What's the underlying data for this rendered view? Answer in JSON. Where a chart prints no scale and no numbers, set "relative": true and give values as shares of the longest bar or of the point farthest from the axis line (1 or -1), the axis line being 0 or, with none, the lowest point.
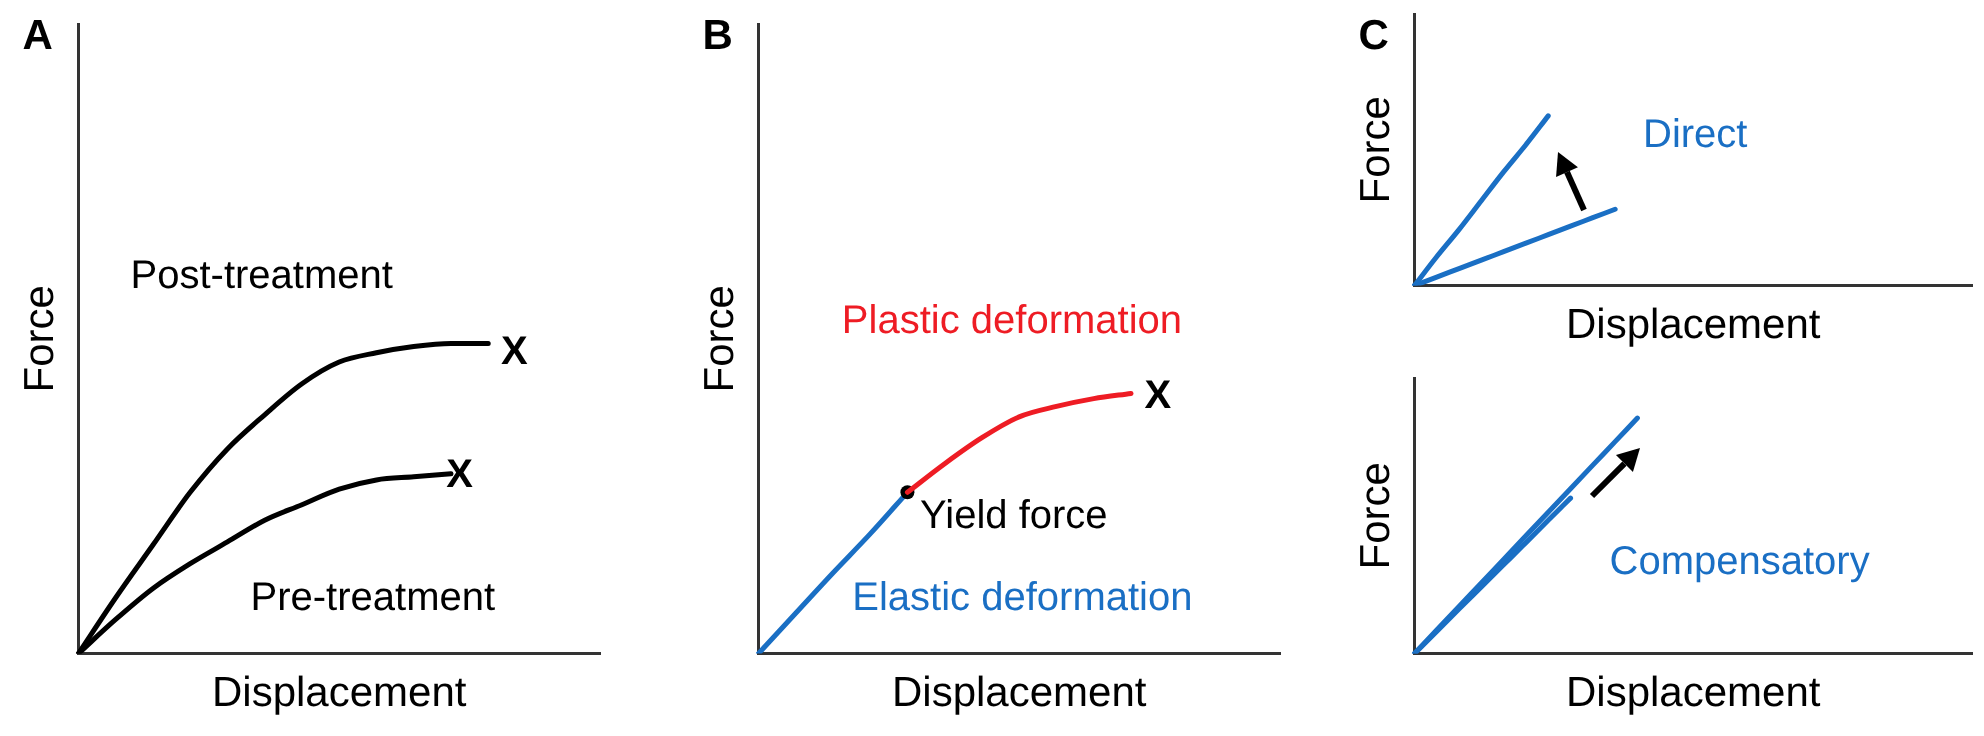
{
  "chart_data": [
    {
      "type": "line",
      "title": "A",
      "xlabel": "Displacement",
      "ylabel": "Force",
      "relative": true,
      "categories": [
        null,
        null,
        null,
        null,
        null,
        null,
        null,
        null,
        null,
        null,
        null,
        null,
        null,
        null,
        null
      ],
      "series": [
        {
          "name": "Post-treatment",
          "color": "#000000",
          "values": [
            0,
            0.18,
            0.35,
            0.52,
            0.66,
            0.77,
            0.87,
            0.94,
            0.97,
            0.99,
            1,
            1,
            null,
            null,
            null
          ]
        },
        {
          "name": "Pre-treatment",
          "color": "#000000",
          "values": [
            0,
            0.11,
            0.21,
            0.29,
            0.36,
            0.43,
            0.48,
            0.53,
            0.56,
            0.57,
            0.58,
            null,
            null,
            null,
            null
          ]
        }
      ],
      "annotations": [
        "X",
        "X"
      ]
    },
    {
      "type": "line",
      "title": "B",
      "xlabel": "Displacement",
      "ylabel": "Force",
      "relative": true,
      "categories": [
        null,
        null,
        null,
        null,
        null,
        null,
        null,
        null,
        null,
        null,
        null,
        null,
        null,
        null,
        null
      ],
      "series": [
        {
          "name": "Plastic deformation",
          "color": "#ee1c24",
          "values": [
            null,
            null,
            null,
            null,
            0.62,
            0.73,
            0.83,
            0.91,
            0.95,
            0.98,
            1,
            null,
            null,
            null,
            null
          ]
        },
        {
          "name": "Elastic deformation",
          "color": "#1a6fc4",
          "values": [
            0,
            0.155,
            0.31,
            0.46,
            0.62,
            null,
            null,
            null,
            null,
            null,
            null,
            null,
            null,
            null,
            null
          ]
        }
      ],
      "annotations": [
        "Yield force",
        "X"
      ]
    },
    {
      "type": "line",
      "title": "C",
      "xlabel": "Displacement",
      "ylabel": "Force",
      "relative": true,
      "categories": [
        null,
        null,
        null,
        null,
        null,
        null,
        null,
        null,
        null,
        null,
        null,
        null,
        null,
        null,
        null,
        null,
        null,
        null,
        null,
        null,
        null,
        null,
        null,
        null,
        null,
        null
      ],
      "series": [
        {
          "color": "#1a6fc4",
          "values": [
            0,
            0.17,
            0.33,
            0.5,
            0.67,
            0.83,
            1,
            null,
            null,
            null,
            null,
            null,
            null,
            null,
            null,
            null,
            null,
            null,
            null,
            null,
            null,
            null,
            null,
            null,
            null,
            null
          ]
        },
        {
          "color": "#1a6fc4",
          "values": [
            0,
            0.05,
            0.1,
            0.15,
            0.2,
            0.25,
            0.3,
            0.35,
            0.4,
            0.45,
            null,
            null,
            null,
            null,
            null,
            null,
            null,
            null,
            null,
            null,
            null,
            null,
            null,
            null,
            null,
            null
          ]
        }
      ],
      "annotations": [
        "Direct"
      ]
    },
    {
      "type": "line",
      "xlabel": "Displacement",
      "ylabel": "Force",
      "relative": true,
      "categories": [
        null,
        null,
        null,
        null,
        null,
        null,
        null,
        null,
        null,
        null,
        null,
        null,
        null,
        null,
        null,
        null,
        null,
        null,
        null,
        null,
        null,
        null,
        null,
        null,
        null,
        null
      ],
      "series": [
        {
          "color": "#1a6fc4",
          "values": [
            0,
            0.1,
            0.2,
            0.3,
            0.4,
            0.5,
            0.6,
            0.7,
            0.8,
            0.9,
            1,
            null,
            null,
            null,
            null,
            null,
            null,
            null,
            null,
            null,
            null,
            null,
            null,
            null,
            null,
            null
          ]
        },
        {
          "color": "#1a6fc4",
          "values": [
            0,
            0.094,
            0.189,
            0.283,
            0.377,
            0.471,
            0.566,
            0.66,
            null,
            null,
            null,
            null,
            null,
            null,
            null,
            null,
            null,
            null,
            null,
            null,
            null,
            null,
            null,
            null,
            null,
            null
          ]
        }
      ],
      "annotations": [
        "Compensatory"
      ]
    }
  ]
}
